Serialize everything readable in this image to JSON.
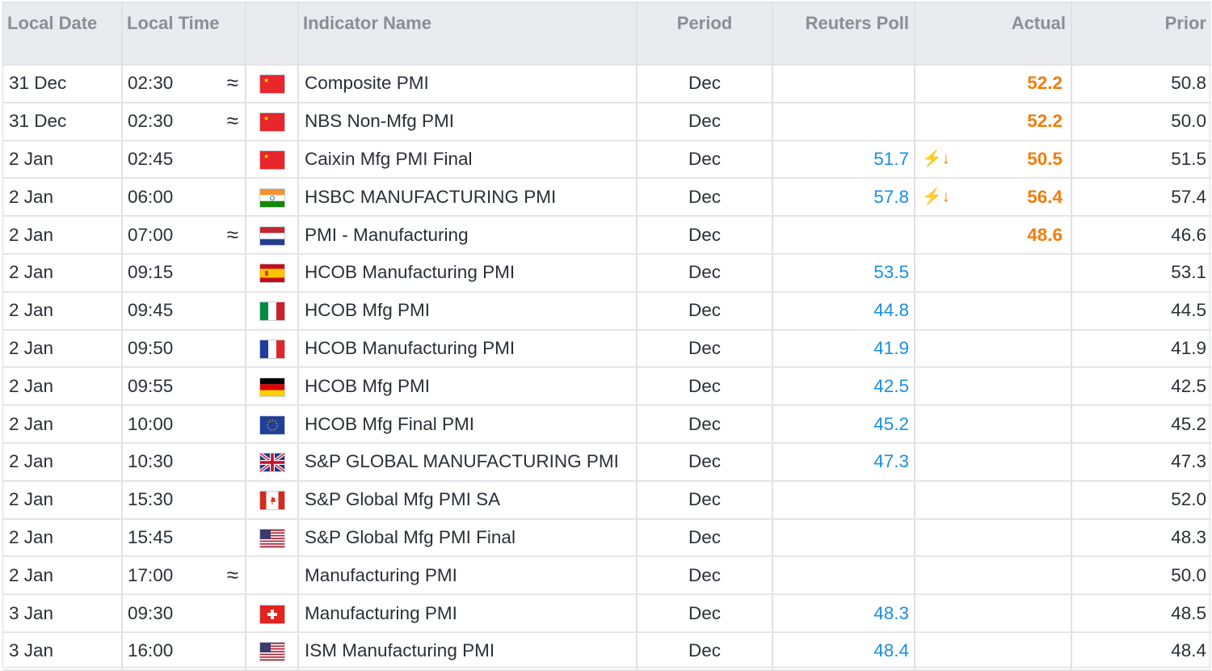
{
  "columns": {
    "date": "Local Date",
    "time": "Local Time",
    "name": "Indicator Name",
    "period": "Period",
    "poll": "Reuters Poll",
    "actual": "Actual",
    "prior": "Prior"
  },
  "colors": {
    "poll": "#1a8fe3",
    "actual": "#f27d0c",
    "header_bg": "#e9ebee"
  },
  "rows": [
    {
      "date": "31 Dec",
      "time": "02:30",
      "approx": "≈",
      "flag": "china-flag",
      "name": "Composite PMI",
      "period": "Dec",
      "poll": "",
      "alert": "",
      "actual": "52.2",
      "prior": "50.8"
    },
    {
      "date": "31 Dec",
      "time": "02:30",
      "approx": "≈",
      "flag": "china-flag",
      "name": "NBS Non-Mfg PMI",
      "period": "Dec",
      "poll": "",
      "alert": "",
      "actual": "52.2",
      "prior": "50.0"
    },
    {
      "date": "2 Jan",
      "time": "02:45",
      "approx": "",
      "flag": "china-flag",
      "name": "Caixin Mfg PMI Final",
      "period": "Dec",
      "poll": "51.7",
      "alert": "⚡↓",
      "actual": "50.5",
      "prior": "51.5"
    },
    {
      "date": "2 Jan",
      "time": "06:00",
      "approx": "",
      "flag": "india-flag",
      "name": "HSBC MANUFACTURING PMI",
      "period": "Dec",
      "poll": "57.8",
      "alert": "⚡↓",
      "actual": "56.4",
      "prior": "57.4"
    },
    {
      "date": "2 Jan",
      "time": "07:00",
      "approx": "≈",
      "flag": "netherlands-flag",
      "name": "PMI - Manufacturing",
      "period": "Dec",
      "poll": "",
      "alert": "",
      "actual": "48.6",
      "prior": "46.6"
    },
    {
      "date": "2 Jan",
      "time": "09:15",
      "approx": "",
      "flag": "spain-flag",
      "name": "HCOB Manufacturing PMI",
      "period": "Dec",
      "poll": "53.5",
      "alert": "",
      "actual": "",
      "prior": "53.1"
    },
    {
      "date": "2 Jan",
      "time": "09:45",
      "approx": "",
      "flag": "italy-flag",
      "name": "HCOB Mfg PMI",
      "period": "Dec",
      "poll": "44.8",
      "alert": "",
      "actual": "",
      "prior": "44.5"
    },
    {
      "date": "2 Jan",
      "time": "09:50",
      "approx": "",
      "flag": "france-flag",
      "name": "HCOB Manufacturing PMI",
      "period": "Dec",
      "poll": "41.9",
      "alert": "",
      "actual": "",
      "prior": "41.9"
    },
    {
      "date": "2 Jan",
      "time": "09:55",
      "approx": "",
      "flag": "germany-flag",
      "name": "HCOB Mfg PMI",
      "period": "Dec",
      "poll": "42.5",
      "alert": "",
      "actual": "",
      "prior": "42.5"
    },
    {
      "date": "2 Jan",
      "time": "10:00",
      "approx": "",
      "flag": "eu-flag",
      "name": "HCOB Mfg Final PMI",
      "period": "Dec",
      "poll": "45.2",
      "alert": "",
      "actual": "",
      "prior": "45.2"
    },
    {
      "date": "2 Jan",
      "time": "10:30",
      "approx": "",
      "flag": "uk-flag",
      "name": "S&P GLOBAL MANUFACTURING PMI",
      "period": "Dec",
      "poll": "47.3",
      "alert": "",
      "actual": "",
      "prior": "47.3"
    },
    {
      "date": "2 Jan",
      "time": "15:30",
      "approx": "",
      "flag": "canada-flag",
      "name": "S&P Global Mfg PMI SA",
      "period": "Dec",
      "poll": "",
      "alert": "",
      "actual": "",
      "prior": "52.0"
    },
    {
      "date": "2 Jan",
      "time": "15:45",
      "approx": "",
      "flag": "usa-flag",
      "name": "S&P Global Mfg PMI Final",
      "period": "Dec",
      "poll": "",
      "alert": "",
      "actual": "",
      "prior": "48.3"
    },
    {
      "date": "2 Jan",
      "time": "17:00",
      "approx": "≈",
      "flag": "",
      "name": "Manufacturing PMI",
      "period": "Dec",
      "poll": "",
      "alert": "",
      "actual": "",
      "prior": "50.0"
    },
    {
      "date": "3 Jan",
      "time": "09:30",
      "approx": "",
      "flag": "switzerland-flag",
      "name": "Manufacturing PMI",
      "period": "Dec",
      "poll": "48.3",
      "alert": "",
      "actual": "",
      "prior": "48.5"
    },
    {
      "date": "3 Jan",
      "time": "16:00",
      "approx": "",
      "flag": "usa-flag",
      "name": "ISM Manufacturing PMI",
      "period": "Dec",
      "poll": "48.4",
      "alert": "",
      "actual": "",
      "prior": "48.4"
    }
  ]
}
